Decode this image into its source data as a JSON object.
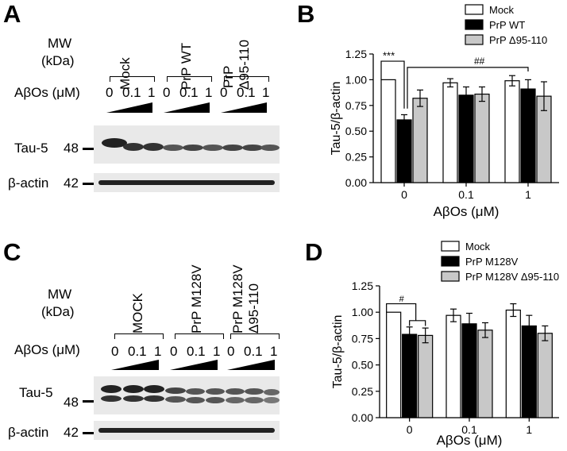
{
  "panels": {
    "A": {
      "label": "A",
      "mw_label": "MW",
      "kda_label": "(kDa)",
      "groups": [
        "Mock",
        "PrP WT",
        "PrP",
        "Δ95-110"
      ],
      "abos_label": "AβOs (μM)",
      "doses": [
        "0",
        "0.1",
        "1"
      ],
      "bands": [
        {
          "name": "Tau-5",
          "mw": "48"
        },
        {
          "name": "β-actin",
          "mw": "42"
        }
      ]
    },
    "C": {
      "label": "C",
      "mw_label": "MW",
      "kda_label": "(kDa)",
      "groups": [
        "MOCK",
        "PrP M128V",
        "PrP M128V",
        "Δ95-110"
      ],
      "abos_label": "AβOs (μM)",
      "doses": [
        "0",
        "0.1",
        "1"
      ],
      "bands": [
        {
          "name": "Tau-5",
          "mw": "48"
        },
        {
          "name": "β-actin",
          "mw": "42"
        }
      ]
    },
    "B": {
      "label": "B"
    },
    "D": {
      "label": "D"
    }
  },
  "chart_data": [
    {
      "type": "bar",
      "panel": "B",
      "categories": [
        "0",
        "0.1",
        "1"
      ],
      "xlabel": "AβOs (μM)",
      "ylabel": "Tau-5/β-actin",
      "ylim": [
        0,
        1.25
      ],
      "yticks": [
        "0.00",
        "0.25",
        "0.50",
        "0.75",
        "1.00",
        "1.25"
      ],
      "legend_position": "top-right",
      "series": [
        {
          "name": "Mock",
          "color": "#ffffff",
          "values": [
            1.0,
            0.97,
            0.99
          ],
          "errors": [
            0.0,
            0.04,
            0.05
          ]
        },
        {
          "name": "PrP WT",
          "color": "#000000",
          "values": [
            0.61,
            0.85,
            0.91
          ],
          "errors": [
            0.05,
            0.08,
            0.09
          ]
        },
        {
          "name": "PrP Δ95-110",
          "color": "#c8c8c8",
          "values": [
            0.82,
            0.86,
            0.84
          ],
          "errors": [
            0.08,
            0.07,
            0.14
          ]
        }
      ],
      "annotations": [
        "***",
        "##"
      ]
    },
    {
      "type": "bar",
      "panel": "D",
      "categories": [
        "0",
        "0.1",
        "1"
      ],
      "xlabel": "AβOs (μM)",
      "ylabel": "Tau-5/β-actin",
      "ylim": [
        0,
        1.25
      ],
      "yticks": [
        "0.00",
        "0.25",
        "0.50",
        "0.75",
        "1.00",
        "1.25"
      ],
      "legend_position": "top-right",
      "series": [
        {
          "name": "Mock",
          "color": "#ffffff",
          "values": [
            1.0,
            0.97,
            1.02
          ],
          "errors": [
            0.0,
            0.06,
            0.06
          ]
        },
        {
          "name": "PrP M128V",
          "color": "#000000",
          "values": [
            0.79,
            0.89,
            0.87
          ],
          "errors": [
            0.07,
            0.1,
            0.1
          ]
        },
        {
          "name": "PrP M128V Δ95-110",
          "color": "#c8c8c8",
          "values": [
            0.78,
            0.83,
            0.8
          ],
          "errors": [
            0.07,
            0.07,
            0.07
          ]
        }
      ],
      "annotations": [
        "#"
      ]
    }
  ]
}
